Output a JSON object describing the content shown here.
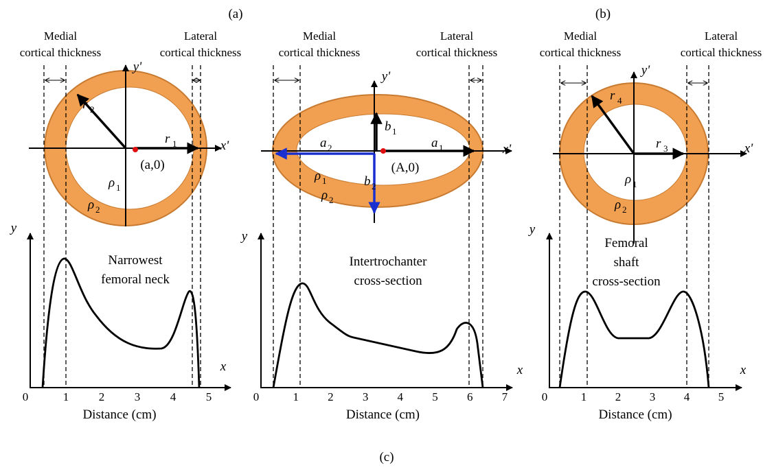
{
  "figure_labels": [
    "(a)",
    "(b)",
    "(c)"
  ],
  "panels": [
    {
      "medial": [
        "Medial",
        "cortical thickness"
      ],
      "lateral": [
        "Lateral",
        "cortical thickness"
      ],
      "annotation": [
        "Narrowest",
        "femoral neck"
      ],
      "x_axis": "x",
      "y_axis": "y",
      "x_prime": "x'",
      "y_prime": "y'",
      "xlabel": "Distance (cm)",
      "ticks": [
        0,
        1,
        2,
        3,
        4,
        5
      ],
      "point": "(a,0)",
      "symbols": [
        {
          "s": "r",
          "sub": "2"
        },
        {
          "s": "r",
          "sub": "1"
        },
        {
          "s": "ρ",
          "sub": "1"
        },
        {
          "s": "ρ",
          "sub": "2"
        }
      ]
    },
    {
      "medial": [
        "Medial",
        "cortical thickness"
      ],
      "lateral": [
        "Lateral",
        "cortical thickness"
      ],
      "annotation": [
        "Intertrochanter",
        "cross-section"
      ],
      "x_axis": "x",
      "y_axis": "y",
      "x_prime": "x'",
      "y_prime": "y'",
      "xlabel": "Distance (cm)",
      "ticks": [
        0,
        1,
        2,
        3,
        4,
        5,
        6,
        7
      ],
      "point": "(A,0)",
      "symbols": [
        {
          "s": "a",
          "sub": "2"
        },
        {
          "s": "b",
          "sub": "1"
        },
        {
          "s": "a",
          "sub": "1"
        },
        {
          "s": "ρ",
          "sub": "1"
        },
        {
          "s": "ρ",
          "sub": "2"
        },
        {
          "s": "b",
          "sub": "2"
        }
      ]
    },
    {
      "medial": [
        "Medial",
        "cortical thickness"
      ],
      "lateral": [
        "Lateral",
        "cortical thickness"
      ],
      "annotation": [
        "Femoral",
        "shaft",
        "cross-section"
      ],
      "x_axis": "x",
      "y_axis": "y",
      "x_prime": "x'",
      "y_prime": "y'",
      "xlabel": "Distance (cm)",
      "ticks": [
        0,
        1,
        2,
        3,
        4,
        5
      ],
      "point": null,
      "symbols": [
        {
          "s": "r",
          "sub": "4"
        },
        {
          "s": "r",
          "sub": "3"
        },
        {
          "s": "ρ",
          "sub": "1"
        },
        {
          "s": "ρ",
          "sub": "2"
        }
      ]
    }
  ]
}
